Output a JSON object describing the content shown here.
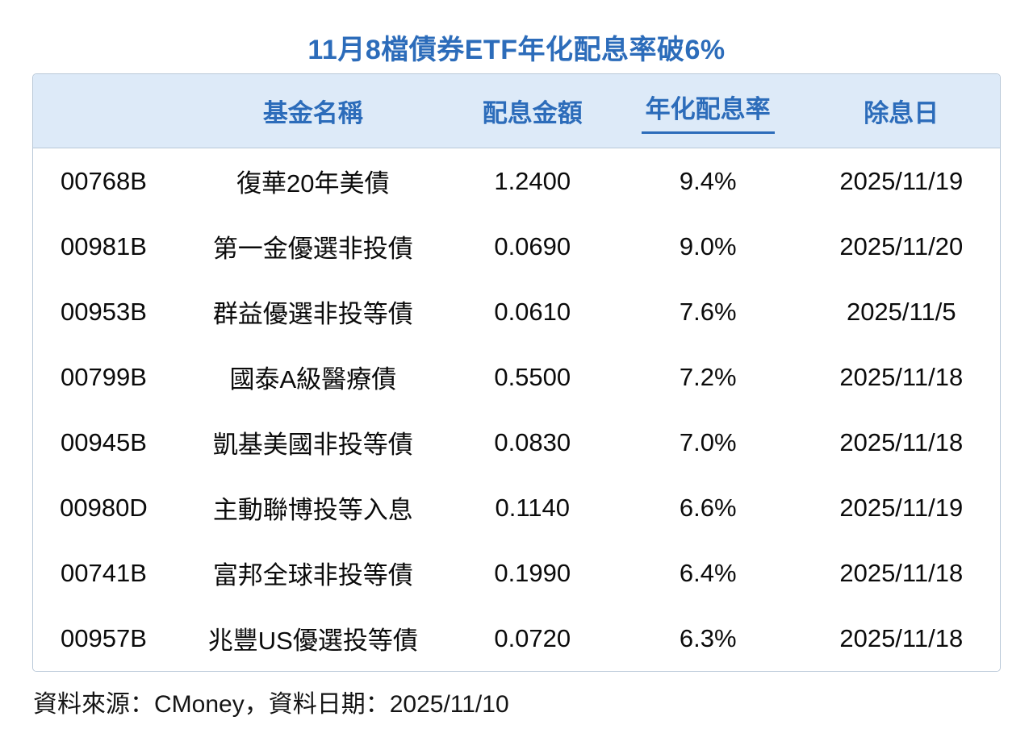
{
  "title": "11月8檔債券ETF年化配息率破6%",
  "table": {
    "headers": [
      "",
      "基金名稱",
      "配息金額",
      "年化配息率",
      "除息日"
    ],
    "rows": [
      {
        "ticker": "00768B",
        "name": "復華20年美債",
        "amount": "1.2400",
        "yield": "9.4%",
        "ex_date": "2025/11/19"
      },
      {
        "ticker": "00981B",
        "name": "第一金優選非投債",
        "amount": "0.0690",
        "yield": "9.0%",
        "ex_date": "2025/11/20"
      },
      {
        "ticker": "00953B",
        "name": "群益優選非投等債",
        "amount": "0.0610",
        "yield": "7.6%",
        "ex_date": "2025/11/5"
      },
      {
        "ticker": "00799B",
        "name": "國泰A級醫療債",
        "amount": "0.5500",
        "yield": "7.2%",
        "ex_date": "2025/11/18"
      },
      {
        "ticker": "00945B",
        "name": "凱基美國非投等債",
        "amount": "0.0830",
        "yield": "7.0%",
        "ex_date": "2025/11/18"
      },
      {
        "ticker": "00980D",
        "name": "主動聯博投等入息",
        "amount": "0.1140",
        "yield": "6.6%",
        "ex_date": "2025/11/19"
      },
      {
        "ticker": "00741B",
        "name": "富邦全球非投等債",
        "amount": "0.1990",
        "yield": "6.4%",
        "ex_date": "2025/11/18"
      },
      {
        "ticker": "00957B",
        "name": "兆豐US優選投等債",
        "amount": "0.0720",
        "yield": "6.3%",
        "ex_date": "2025/11/18"
      }
    ]
  },
  "footer": {
    "text": "資料來源：CMoney，資料日期：2025/11/10"
  },
  "colors": {
    "accent_blue": "#2c6cba",
    "header_background": "#ddeaf8",
    "table_border": "#b9c8d8",
    "body_text": "#0b0b0b",
    "page_background": "#ffffff"
  },
  "chart_data": {
    "type": "table",
    "title": "11月8檔債券ETF年化配息率破6%",
    "columns": [
      "",
      "基金名稱",
      "配息金額",
      "年化配息率",
      "除息日"
    ],
    "rows": [
      [
        "00768B",
        "復華20年美債",
        1.24,
        "9.4%",
        "2025/11/19"
      ],
      [
        "00981B",
        "第一金優選非投債",
        0.069,
        "9.0%",
        "2025/11/20"
      ],
      [
        "00953B",
        "群益優選非投等債",
        0.061,
        "7.6%",
        "2025/11/5"
      ],
      [
        "00799B",
        "國泰A級醫療債",
        0.55,
        "7.2%",
        "2025/11/18"
      ],
      [
        "00945B",
        "凱基美國非投等債",
        0.083,
        "7.0%",
        "2025/11/18"
      ],
      [
        "00980D",
        "主動聯博投等入息",
        0.114,
        "6.6%",
        "2025/11/19"
      ],
      [
        "00741B",
        "富邦全球非投等債",
        0.199,
        "6.4%",
        "2025/11/18"
      ],
      [
        "00957B",
        "兆豐US優選投等債",
        0.072,
        "6.3%",
        "2025/11/18"
      ]
    ],
    "highlighted_column": "年化配息率",
    "source_note": "資料來源：CMoney，資料日期：2025/11/10"
  }
}
